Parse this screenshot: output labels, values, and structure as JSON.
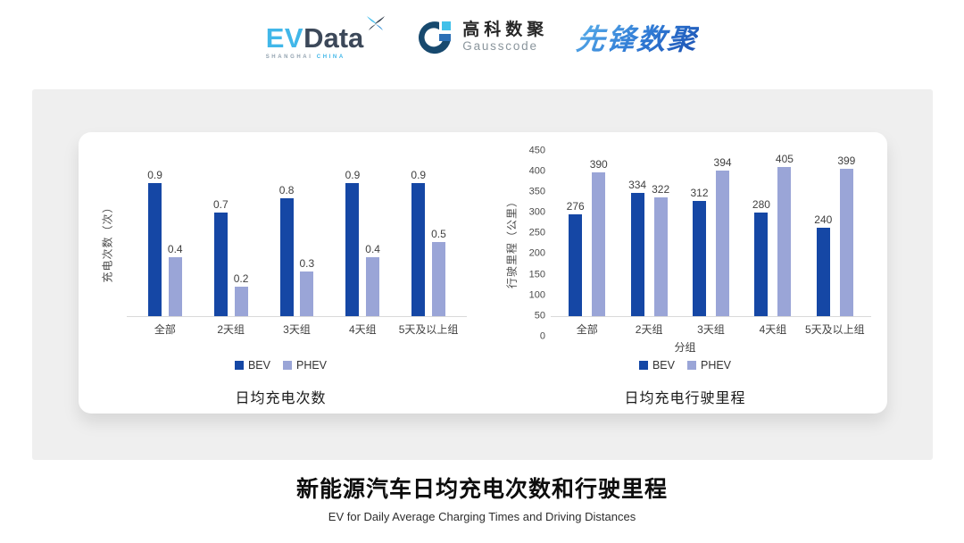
{
  "header": {
    "evdata": {
      "ev": "EV",
      "data": "Data",
      "tagline_left": "SHANGHAI",
      "tagline_right": "CHINA"
    },
    "gausscode": {
      "name_cn": "高科数聚",
      "name_en": "Gausscode"
    },
    "pioneer": {
      "name": "先锋数聚"
    }
  },
  "colors": {
    "bev": "#1547A5",
    "phev": "#9AA5D7",
    "baseline": "#d9d9d9",
    "panel_bg": "#efefef",
    "value_label": "#404040"
  },
  "chart_data": [
    {
      "type": "bar",
      "title": "日均充电次数",
      "ylabel": "充电次数（次）",
      "xlabel": "",
      "categories": [
        "全部",
        "2天组",
        "3天组",
        "4天组",
        "5天及以上组"
      ],
      "series": [
        {
          "name": "BEV",
          "values": [
            0.9,
            0.7,
            0.8,
            0.9,
            0.9
          ]
        },
        {
          "name": "PHEV",
          "values": [
            0.4,
            0.2,
            0.3,
            0.4,
            0.5
          ]
        }
      ],
      "ylim": [
        0,
        1.15
      ],
      "yticks": [],
      "grid": false,
      "legend_position": "bottom"
    },
    {
      "type": "bar",
      "title": "日均充电行驶里程",
      "ylabel": "行驶里程（公里）",
      "xlabel": "分组",
      "categories": [
        "全部",
        "2天组",
        "3天组",
        "4天组",
        "5天及以上组"
      ],
      "series": [
        {
          "name": "BEV",
          "values": [
            276,
            334,
            312,
            280,
            240
          ]
        },
        {
          "name": "PHEV",
          "values": [
            390,
            322,
            394,
            405,
            399
          ]
        }
      ],
      "ylim": [
        0,
        460
      ],
      "yticks": [
        0,
        50,
        100,
        150,
        200,
        250,
        300,
        350,
        400,
        450
      ],
      "grid": false,
      "legend_position": "bottom"
    }
  ],
  "footer": {
    "title": "新能源汽车日均充电次数和行驶里程",
    "subtitle": "EV for Daily Average Charging Times and Driving Distances"
  }
}
